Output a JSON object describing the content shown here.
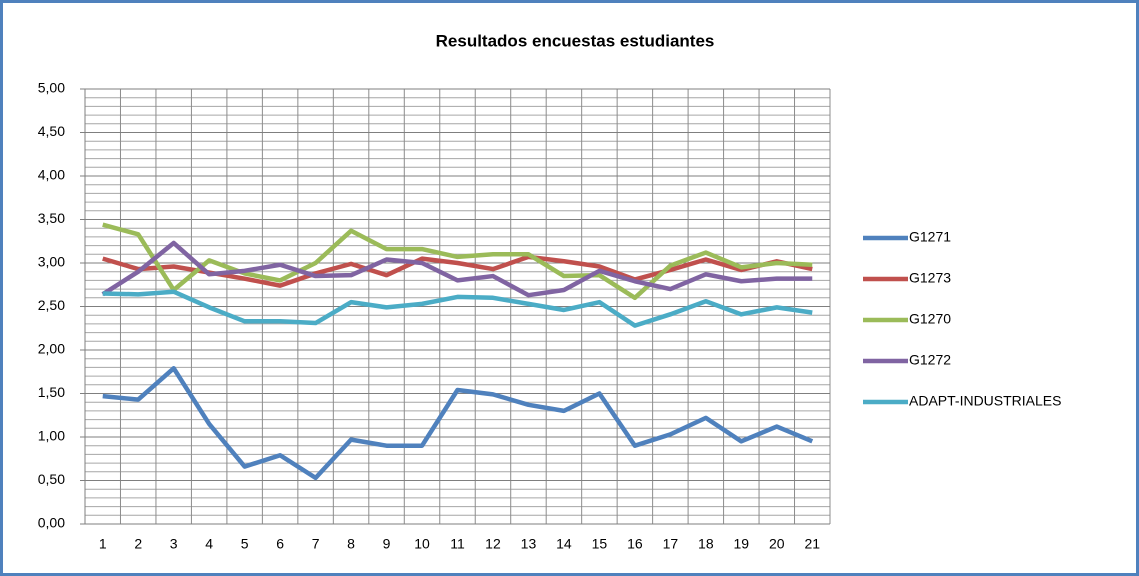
{
  "chart_data": {
    "type": "line",
    "title": "Resultados encuestas estudiantes",
    "categories": [
      1,
      2,
      3,
      4,
      5,
      6,
      7,
      8,
      9,
      10,
      11,
      12,
      13,
      14,
      15,
      16,
      17,
      18,
      19,
      20,
      21
    ],
    "series": [
      {
        "name": "G1271",
        "color": "#4f81bd",
        "values": [
          1.47,
          1.43,
          1.79,
          1.15,
          0.66,
          0.79,
          0.53,
          0.97,
          0.9,
          0.9,
          1.54,
          1.49,
          1.37,
          1.3,
          1.5,
          0.9,
          1.03,
          1.22,
          0.95,
          1.12,
          0.95
        ]
      },
      {
        "name": "G1273",
        "color": "#c0504d",
        "values": [
          3.05,
          2.93,
          2.96,
          2.89,
          2.82,
          2.74,
          2.88,
          2.99,
          2.86,
          3.05,
          3.0,
          2.93,
          3.07,
          3.02,
          2.96,
          2.81,
          2.92,
          3.04,
          2.92,
          3.02,
          2.93
        ]
      },
      {
        "name": "G1270",
        "color": "#9bbb59",
        "values": [
          3.44,
          3.33,
          2.69,
          3.03,
          2.88,
          2.8,
          3.0,
          3.37,
          3.16,
          3.16,
          3.07,
          3.1,
          3.1,
          2.85,
          2.86,
          2.6,
          2.97,
          3.12,
          2.95,
          3.0,
          2.98
        ]
      },
      {
        "name": "G1272",
        "color": "#8064a2",
        "values": [
          2.64,
          2.9,
          3.23,
          2.87,
          2.91,
          2.98,
          2.85,
          2.86,
          3.04,
          3.0,
          2.8,
          2.85,
          2.63,
          2.69,
          2.91,
          2.79,
          2.7,
          2.87,
          2.79,
          2.82,
          2.82
        ]
      },
      {
        "name": "ADAPT-INDUSTRIALES",
        "color": "#4bacc6",
        "values": [
          2.65,
          2.64,
          2.67,
          2.49,
          2.33,
          2.33,
          2.31,
          2.55,
          2.49,
          2.53,
          2.61,
          2.6,
          2.53,
          2.46,
          2.55,
          2.28,
          2.41,
          2.56,
          2.41,
          2.49,
          2.43
        ]
      }
    ],
    "ylim": [
      0,
      5
    ],
    "yticks": [
      {
        "value": 0,
        "label": "0,00"
      },
      {
        "value": 0.5,
        "label": "0,50"
      },
      {
        "value": 1,
        "label": "1,00"
      },
      {
        "value": 1.5,
        "label": "1,50"
      },
      {
        "value": 2,
        "label": "2,00"
      },
      {
        "value": 2.5,
        "label": "2,50"
      },
      {
        "value": 3,
        "label": "3,00"
      },
      {
        "value": 3.5,
        "label": "3,50"
      },
      {
        "value": 4,
        "label": "4,00"
      },
      {
        "value": 4.5,
        "label": "4,50"
      },
      {
        "value": 5,
        "label": "5,00"
      }
    ],
    "grid": true,
    "legend": "right"
  }
}
